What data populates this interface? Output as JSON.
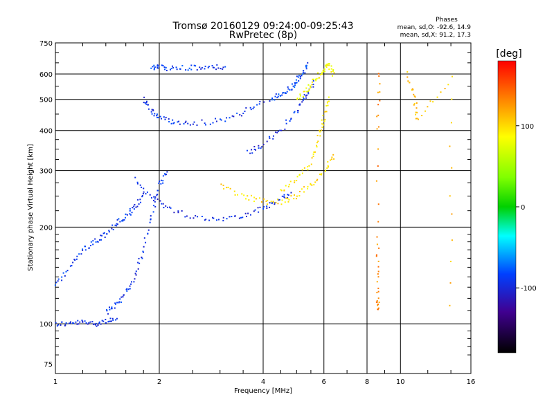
{
  "chart_data": {
    "type": "scatter",
    "title": "Tromsø 20160129 09:24:00-09:25:43",
    "subtitle": "RwPretec (8p)",
    "stats": {
      "title": "Phases",
      "line_o": "mean, sd,O: -92.6, 14.9",
      "line_x": "mean, sd,X:  91.2, 17.3"
    },
    "xlabel": "Frequency [MHz]",
    "ylabel": "Stationary phase Virtual Height [km]",
    "x_scale": "log",
    "y_scale": "log",
    "xlim": [
      1,
      16
    ],
    "ylim": [
      70,
      750
    ],
    "x_ticks": [
      1,
      2,
      4,
      6,
      8,
      10,
      16
    ],
    "x_tick_labels": [
      "1",
      "2",
      "4",
      "6",
      "8",
      "10",
      "16"
    ],
    "y_ticks": [
      75,
      100,
      200,
      300,
      400,
      500,
      600,
      750
    ],
    "y_tick_labels": [
      "75",
      "100",
      "200",
      "300",
      "400",
      "500",
      "600",
      "750"
    ],
    "grid": true,
    "colorbar": {
      "label": "[deg]",
      "range": [
        -180,
        180
      ],
      "tick_values": [
        100,
        0,
        -100
      ],
      "tick_labels": [
        "100",
        "0",
        "-100"
      ]
    },
    "traces": [
      {
        "x": [
          1.0,
          1.1,
          1.2,
          1.3,
          1.4,
          1.5
        ],
        "y": [
          100,
          100,
          101,
          100,
          102,
          103
        ],
        "phase": -95
      },
      {
        "x": [
          1.0,
          1.1,
          1.2,
          1.3,
          1.4,
          1.5,
          1.6,
          1.7,
          1.8
        ],
        "y": [
          130,
          150,
          170,
          180,
          190,
          205,
          215,
          230,
          250
        ],
        "phase": -90
      },
      {
        "x": [
          1.4,
          1.5,
          1.6,
          1.7,
          1.8,
          1.9,
          2.0,
          2.1
        ],
        "y": [
          108,
          115,
          125,
          140,
          170,
          220,
          270,
          300
        ],
        "phase": -92
      },
      {
        "x": [
          1.9,
          2.0,
          2.2,
          2.5,
          2.8,
          3.1
        ],
        "y": [
          630,
          628,
          624,
          626,
          628,
          632
        ],
        "phase": -88
      },
      {
        "x": [
          1.8,
          1.9,
          2.0,
          2.2,
          2.5,
          3.0,
          3.5,
          4.0
        ],
        "y": [
          500,
          460,
          440,
          425,
          420,
          430,
          455,
          490
        ],
        "phase": -92
      },
      {
        "x": [
          1.7,
          1.9,
          2.1,
          2.5,
          3.0,
          3.5,
          4.0,
          4.4,
          4.8
        ],
        "y": [
          280,
          250,
          230,
          215,
          212,
          218,
          228,
          240,
          256
        ],
        "phase": -95
      },
      {
        "x": [
          3.6,
          4.0,
          4.5,
          5.0,
          5.3,
          5.6
        ],
        "y": [
          340,
          360,
          400,
          460,
          510,
          560
        ],
        "phase": -95
      },
      {
        "x": [
          4.2,
          4.5,
          4.8,
          5.0,
          5.2,
          5.4
        ],
        "y": [
          500,
          520,
          540,
          570,
          600,
          640
        ],
        "phase": -85
      },
      {
        "x": [
          3.0,
          3.5,
          4.0,
          4.5,
          5.0,
          5.5,
          6.0,
          6.4
        ],
        "y": [
          270,
          250,
          240,
          240,
          250,
          270,
          300,
          330
        ],
        "phase": 100
      },
      {
        "x": [
          4.5,
          5.0,
          5.5,
          5.8,
          6.0,
          6.2
        ],
        "y": [
          260,
          280,
          320,
          380,
          440,
          500
        ],
        "phase": 95
      },
      {
        "x": [
          5.0,
          5.4,
          5.7,
          6.0,
          6.2,
          6.4
        ],
        "y": [
          500,
          540,
          580,
          620,
          640,
          600
        ],
        "phase": 85
      },
      {
        "x": [
          8.6,
          8.6,
          8.6,
          8.6,
          8.7
        ],
        "y": [
          180,
          118,
          112,
          400,
          610
        ],
        "phase": 130
      },
      {
        "x": [
          10.5,
          11.0,
          11.2,
          14.0,
          14.0
        ],
        "y": [
          600,
          500,
          430,
          580,
          112
        ],
        "phase": 110
      }
    ]
  }
}
